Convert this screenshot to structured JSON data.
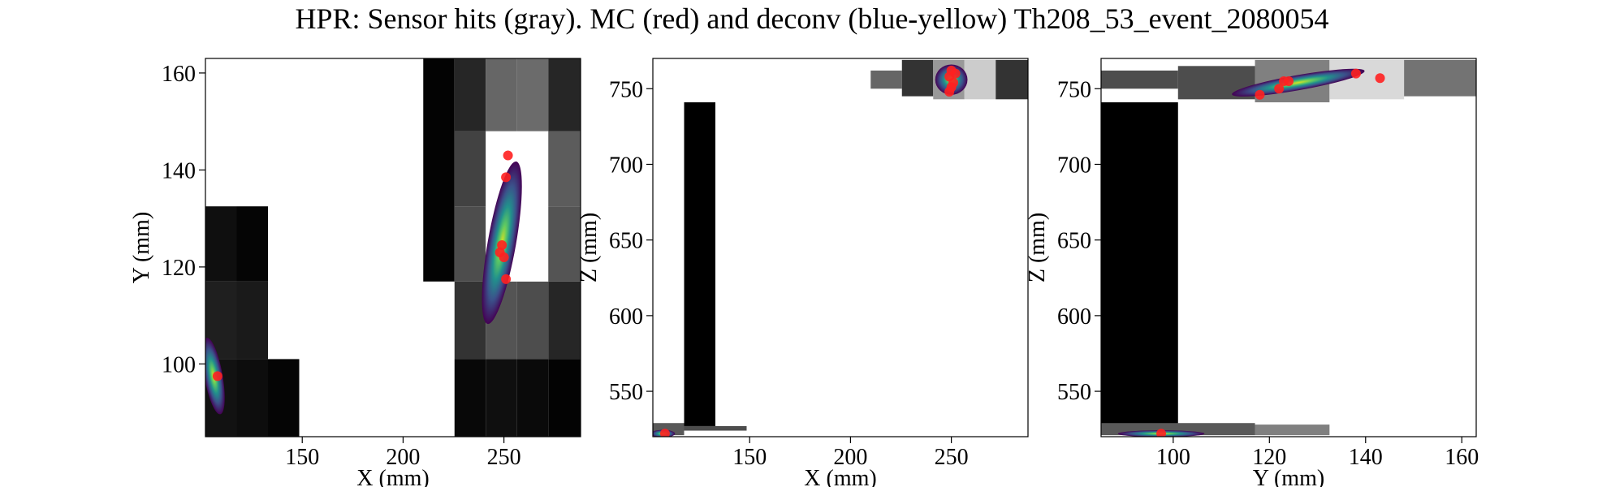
{
  "title": "HPR: Sensor hits (gray). MC (red) and deconv (blue-yellow) Th208_53_event_2080054",
  "colors": {
    "mc_points": "#ff2020",
    "axis": "#000000",
    "background": "#ffffff"
  },
  "chart_data": [
    {
      "type": "heatmap",
      "panel": "XY",
      "xlabel": "X (mm)",
      "ylabel": "Y (mm)",
      "xlim": [
        102,
        288
      ],
      "ylim": [
        85,
        163
      ],
      "xticks": [
        150,
        200,
        250
      ],
      "yticks": [
        100,
        120,
        140,
        160
      ],
      "sensor_hits_gray": [
        {
          "x0": 102,
          "x1": 117.5,
          "y0": 85,
          "y1": 101,
          "v": 0.07
        },
        {
          "x0": 117.5,
          "x1": 133,
          "y0": 85,
          "y1": 101,
          "v": 0.05
        },
        {
          "x0": 133,
          "x1": 148.5,
          "y0": 85,
          "y1": 101,
          "v": 0.02
        },
        {
          "x0": 102,
          "x1": 117.5,
          "y0": 101,
          "y1": 117,
          "v": 0.12
        },
        {
          "x0": 117.5,
          "x1": 133,
          "y0": 101,
          "y1": 117,
          "v": 0.1
        },
        {
          "x0": 102,
          "x1": 117.5,
          "y0": 117,
          "y1": 132.5,
          "v": 0.06
        },
        {
          "x0": 117.5,
          "x1": 133,
          "y0": 117,
          "y1": 132.5,
          "v": 0.02
        },
        {
          "x0": 210,
          "x1": 225.5,
          "y0": 117,
          "y1": 163,
          "v": 0.01
        },
        {
          "x0": 225.5,
          "x1": 241,
          "y0": 85,
          "y1": 101,
          "v": 0.03
        },
        {
          "x0": 241,
          "x1": 256.5,
          "y0": 85,
          "y1": 101,
          "v": 0.06
        },
        {
          "x0": 256.5,
          "x1": 272,
          "y0": 85,
          "y1": 101,
          "v": 0.04
        },
        {
          "x0": 272,
          "x1": 288,
          "y0": 85,
          "y1": 101,
          "v": 0.01
        },
        {
          "x0": 225.5,
          "x1": 241,
          "y0": 101,
          "y1": 117,
          "v": 0.2
        },
        {
          "x0": 241,
          "x1": 256.5,
          "y0": 101,
          "y1": 117,
          "v": 0.33
        },
        {
          "x0": 256.5,
          "x1": 272,
          "y0": 101,
          "y1": 117,
          "v": 0.3
        },
        {
          "x0": 272,
          "x1": 288,
          "y0": 101,
          "y1": 117,
          "v": 0.15
        },
        {
          "x0": 225.5,
          "x1": 241,
          "y0": 117,
          "y1": 132.5,
          "v": 0.3
        },
        {
          "x0": 241,
          "x1": 256.5,
          "y0": 117,
          "y1": 132.5,
          "v": 1.0
        },
        {
          "x0": 256.5,
          "x1": 272,
          "y0": 117,
          "y1": 132.5,
          "v": 1.0
        },
        {
          "x0": 272,
          "x1": 288,
          "y0": 117,
          "y1": 132.5,
          "v": 0.33
        },
        {
          "x0": 225.5,
          "x1": 241,
          "y0": 132.5,
          "y1": 148,
          "v": 0.26
        },
        {
          "x0": 241,
          "x1": 256.5,
          "y0": 132.5,
          "y1": 148,
          "v": 1.0
        },
        {
          "x0": 256.5,
          "x1": 272,
          "y0": 132.5,
          "y1": 148,
          "v": 1.0
        },
        {
          "x0": 272,
          "x1": 288,
          "y0": 132.5,
          "y1": 148,
          "v": 0.36
        },
        {
          "x0": 225.5,
          "x1": 241,
          "y0": 148,
          "y1": 163,
          "v": 0.15
        },
        {
          "x0": 241,
          "x1": 256.5,
          "y0": 148,
          "y1": 163,
          "v": 0.4
        },
        {
          "x0": 256.5,
          "x1": 272,
          "y0": 148,
          "y1": 163,
          "v": 0.42
        },
        {
          "x0": 272,
          "x1": 288,
          "y0": 148,
          "y1": 163,
          "v": 0.15
        }
      ],
      "deconv_blobs": [
        {
          "cx": 106,
          "cy": 97.5,
          "rx": 4.5,
          "ry": 8,
          "rot": -10
        },
        {
          "cx": 249,
          "cy": 125,
          "rx": 7,
          "ry": 17,
          "rot": 10
        }
      ],
      "mc_points": [
        {
          "x": 108,
          "y": 97.5
        },
        {
          "x": 252,
          "y": 143
        },
        {
          "x": 251,
          "y": 138.5
        },
        {
          "x": 249,
          "y": 124.5
        },
        {
          "x": 248,
          "y": 123
        },
        {
          "x": 250,
          "y": 122
        },
        {
          "x": 251,
          "y": 117.5
        }
      ]
    },
    {
      "type": "heatmap",
      "panel": "XZ",
      "xlabel": "X (mm)",
      "ylabel": "Z (mm)",
      "xlim": [
        102,
        288
      ],
      "ylim": [
        520,
        770
      ],
      "xticks": [
        150,
        200,
        250
      ],
      "yticks": [
        550,
        600,
        650,
        700,
        750
      ],
      "sensor_hits_gray": [
        {
          "x0": 117.5,
          "x1": 133,
          "y0": 527,
          "y1": 741,
          "v": 0.0
        },
        {
          "x0": 102,
          "x1": 117.5,
          "y0": 521,
          "y1": 529,
          "v": 0.35
        },
        {
          "x0": 117.5,
          "x1": 148.5,
          "y0": 524,
          "y1": 527,
          "v": 0.3
        },
        {
          "x0": 210,
          "x1": 225.5,
          "y0": 750,
          "y1": 762,
          "v": 0.4
        },
        {
          "x0": 225.5,
          "x1": 241,
          "y0": 745,
          "y1": 769,
          "v": 0.2
        },
        {
          "x0": 241,
          "x1": 256.5,
          "y0": 743,
          "y1": 769,
          "v": 0.6
        },
        {
          "x0": 256.5,
          "x1": 272,
          "y0": 743,
          "y1": 769,
          "v": 0.8
        },
        {
          "x0": 272,
          "x1": 288,
          "y0": 743,
          "y1": 769,
          "v": 0.2
        }
      ],
      "deconv_blobs": [
        {
          "cx": 107,
          "cy": 522,
          "rx": 6,
          "ry": 2.5,
          "rot": 0
        },
        {
          "cx": 250,
          "cy": 756,
          "rx": 8,
          "ry": 10,
          "rot": 0
        }
      ],
      "mc_points": [
        {
          "x": 108,
          "y": 522
        },
        {
          "x": 250,
          "y": 762
        },
        {
          "x": 252,
          "y": 760
        },
        {
          "x": 249,
          "y": 758
        },
        {
          "x": 251,
          "y": 754
        },
        {
          "x": 250,
          "y": 751
        },
        {
          "x": 249,
          "y": 748
        }
      ]
    },
    {
      "type": "heatmap",
      "panel": "YZ",
      "xlabel": "Y (mm)",
      "ylabel": "Z (mm)",
      "xlim": [
        85,
        163
      ],
      "ylim": [
        520,
        770
      ],
      "xticks": [
        100,
        120,
        140,
        160
      ],
      "yticks": [
        550,
        600,
        650,
        700,
        750
      ],
      "sensor_hits_gray": [
        {
          "x0": 85,
          "x1": 101,
          "y0": 527,
          "y1": 741,
          "v": 0.0
        },
        {
          "x0": 85,
          "x1": 117,
          "y0": 521,
          "y1": 529,
          "v": 0.35
        },
        {
          "x0": 117,
          "x1": 132.5,
          "y0": 521,
          "y1": 528,
          "v": 0.5
        },
        {
          "x0": 85,
          "x1": 101,
          "y0": 750,
          "y1": 762,
          "v": 0.3
        },
        {
          "x0": 101,
          "x1": 117,
          "y0": 743,
          "y1": 765,
          "v": 0.3
        },
        {
          "x0": 117,
          "x1": 132.5,
          "y0": 741,
          "y1": 769,
          "v": 0.5
        },
        {
          "x0": 132.5,
          "x1": 148,
          "y0": 743,
          "y1": 769,
          "v": 0.85
        },
        {
          "x0": 148,
          "x1": 163,
          "y0": 745,
          "y1": 769,
          "v": 0.45
        }
      ],
      "deconv_blobs": [
        {
          "cx": 97.5,
          "cy": 522,
          "rx": 9,
          "ry": 2.2,
          "rot": 0
        },
        {
          "cx": 126,
          "cy": 754,
          "rx": 14,
          "ry": 5,
          "rot": -10
        }
      ],
      "mc_points": [
        {
          "x": 97.5,
          "y": 522
        },
        {
          "x": 143,
          "y": 757
        },
        {
          "x": 138,
          "y": 760
        },
        {
          "x": 124,
          "y": 755
        },
        {
          "x": 123,
          "y": 755
        },
        {
          "x": 122,
          "y": 750
        },
        {
          "x": 118,
          "y": 746
        }
      ]
    }
  ]
}
